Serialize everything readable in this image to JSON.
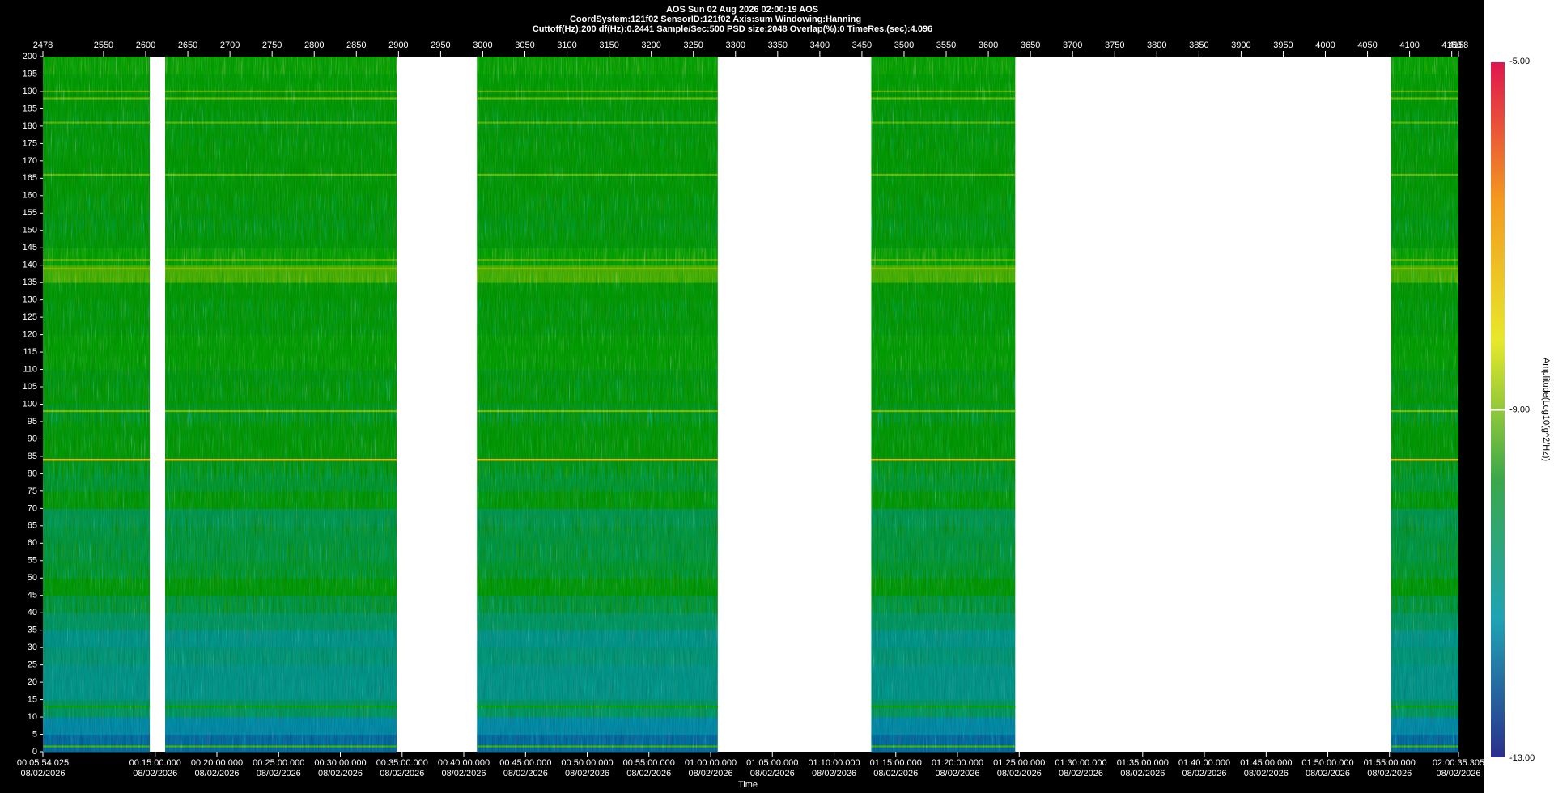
{
  "chart_data": {
    "type": "spectrogram",
    "title": "AOS  Sun 02 Aug 2026 02:00:19  AOS",
    "subtitle": [
      "CoordSystem:121f02   SensorID:121f02   Axis:sum    Windowing:Hanning",
      "Cuttoff(Hz):200    df(Hz):0.2441     Sample/Sec:500     PSD size:2048       Overlap(%):0       TimeRes.(sec):4.096"
    ],
    "xlabel": "Time",
    "xlim": [
      2478,
      4158
    ],
    "xticks": [
      2478,
      2550,
      2600,
      2650,
      2700,
      2750,
      2800,
      2850,
      2900,
      2950,
      3000,
      3050,
      3100,
      3150,
      3200,
      3250,
      3300,
      3350,
      3400,
      3450,
      3500,
      3550,
      3600,
      3650,
      3700,
      3750,
      3800,
      3850,
      3900,
      3950,
      4000,
      4050,
      4100,
      4150,
      4158
    ],
    "x2ticks": [
      {
        "value": 2478,
        "label": "00:05:54.025"
      },
      {
        "value": 2611.3,
        "label": "00:15:00.000"
      },
      {
        "value": 2684.5,
        "label": "00:20:00.000"
      },
      {
        "value": 2757.8,
        "label": "00:25:00.000"
      },
      {
        "value": 2831.0,
        "label": "00:30:00.000"
      },
      {
        "value": 2904.3,
        "label": "00:35:00.000"
      },
      {
        "value": 2977.5,
        "label": "00:40:00.000"
      },
      {
        "value": 3050.8,
        "label": "00:45:00.000"
      },
      {
        "value": 3124.0,
        "label": "00:50:00.000"
      },
      {
        "value": 3197.2,
        "label": "00:55:00.000"
      },
      {
        "value": 3270.5,
        "label": "01:00:00.000"
      },
      {
        "value": 3343.7,
        "label": "01:05:00.000"
      },
      {
        "value": 3417.0,
        "label": "01:10:00.000"
      },
      {
        "value": 3490.2,
        "label": "01:15:00.000"
      },
      {
        "value": 3563.4,
        "label": "01:20:00.000"
      },
      {
        "value": 3636.7,
        "label": "01:25:00.000"
      },
      {
        "value": 3709.9,
        "label": "01:30:00.000"
      },
      {
        "value": 3783.2,
        "label": "01:35:00.000"
      },
      {
        "value": 3856.4,
        "label": "01:40:00.000"
      },
      {
        "value": 3929.7,
        "label": "01:45:00.000"
      },
      {
        "value": 4002.9,
        "label": "01:50:00.000"
      },
      {
        "value": 4076.1,
        "label": "01:55:00.000"
      },
      {
        "value": 4158,
        "label": "02:00:35.305"
      }
    ],
    "x2_date": "08/02/2026",
    "ylim": [
      0,
      200
    ],
    "yticks": [
      0,
      5,
      10,
      15,
      20,
      25,
      30,
      35,
      40,
      45,
      50,
      55,
      60,
      65,
      70,
      75,
      80,
      85,
      90,
      95,
      100,
      105,
      110,
      115,
      120,
      125,
      130,
      135,
      140,
      145,
      150,
      155,
      160,
      165,
      170,
      175,
      180,
      185,
      190,
      195,
      200
    ],
    "segments": [
      [
        2478,
        2605
      ],
      [
        2623,
        2898
      ],
      [
        2993,
        3279
      ],
      [
        3461,
        3632
      ],
      [
        4078,
        4158
      ]
    ],
    "frequency_bins": [
      0,
      5,
      10,
      15,
      20,
      25,
      30,
      35,
      40,
      45,
      50,
      55,
      60,
      65,
      70,
      75,
      80,
      85,
      90,
      95,
      100,
      105,
      110,
      115,
      120,
      125,
      130,
      135,
      140,
      145,
      150,
      155,
      160,
      165,
      170,
      175,
      180,
      185,
      190,
      195,
      200
    ],
    "amplitude": [
      -11.8,
      -11.5,
      -10.6,
      -11.0,
      -11.0,
      -10.8,
      -11.0,
      -10.6,
      -10.3,
      -9.9,
      -10.2,
      -10.3,
      -10.3,
      -10.4,
      -9.9,
      -10.2,
      -10.1,
      -9.8,
      -9.9,
      -10.1,
      -9.9,
      -10.0,
      -9.7,
      -9.7,
      -9.9,
      -9.9,
      -9.8,
      -9.3,
      -9.6,
      -9.9,
      -10.0,
      -9.9,
      -9.8,
      -9.8,
      -9.8,
      -9.9,
      -9.9,
      -9.8,
      -9.7,
      -9.6
    ],
    "lines": [
      {
        "frequency": 1.5,
        "amplitude": -9.3
      },
      {
        "frequency": 13,
        "amplitude": -9.6
      },
      {
        "frequency": 84,
        "amplitude": -7.6
      },
      {
        "frequency": 98,
        "amplitude": -9.0
      },
      {
        "frequency": 139,
        "amplitude": -9.0
      },
      {
        "frequency": 141.5,
        "amplitude": -9.2
      },
      {
        "frequency": 166,
        "amplitude": -9.1
      },
      {
        "frequency": 181,
        "amplitude": -9.2
      },
      {
        "frequency": 188,
        "amplitude": -9.1
      },
      {
        "frequency": 190,
        "amplitude": -9.2
      }
    ],
    "colorbar": {
      "label": "Amplitude(Log10(g^2/Hz))",
      "lim": [
        -13,
        -5
      ],
      "ticks": [
        {
          "value": -5,
          "label": "-5.00"
        },
        {
          "value": -9,
          "label": "-9.00"
        },
        {
          "value": -13,
          "label": "-13.00"
        }
      ],
      "colors": [
        "#2b2f8c",
        "#1fa3b5",
        "#3aa84a",
        "#e8e82a",
        "#f39a1f",
        "#e0154f"
      ]
    }
  }
}
